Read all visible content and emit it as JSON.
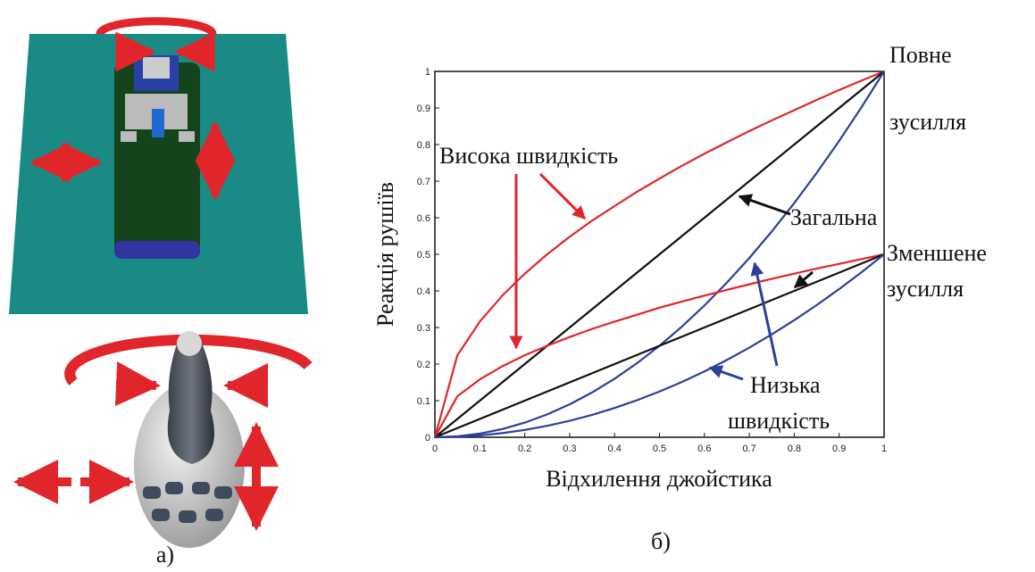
{
  "chart_data": {
    "type": "line",
    "xlabel": "Відхилення джойстика",
    "ylabel": "Реакція рушіїв",
    "x": [
      0,
      0.05,
      0.1,
      0.15,
      0.2,
      0.25,
      0.3,
      0.35,
      0.4,
      0.45,
      0.5,
      0.55,
      0.6,
      0.65,
      0.7,
      0.75,
      0.8,
      0.85,
      0.9,
      0.95,
      1
    ],
    "series": [
      {
        "color": "#e0262a",
        "values": [
          0,
          0.224,
          0.316,
          0.387,
          0.447,
          0.5,
          0.548,
          0.592,
          0.632,
          0.671,
          0.707,
          0.742,
          0.775,
          0.806,
          0.837,
          0.866,
          0.894,
          0.922,
          0.949,
          0.975,
          1
        ]
      },
      {
        "color": "#111111",
        "values": [
          0,
          0.05,
          0.1,
          0.15,
          0.2,
          0.25,
          0.3,
          0.35,
          0.4,
          0.45,
          0.5,
          0.55,
          0.6,
          0.65,
          0.7,
          0.75,
          0.8,
          0.85,
          0.9,
          0.95,
          1
        ]
      },
      {
        "color": "#2d3f9a",
        "values": [
          0,
          0.0025,
          0.01,
          0.0225,
          0.04,
          0.0625,
          0.09,
          0.1225,
          0.16,
          0.2025,
          0.25,
          0.3025,
          0.36,
          0.4225,
          0.49,
          0.5625,
          0.64,
          0.7225,
          0.81,
          0.9025,
          1
        ]
      },
      {
        "color": "#e0262a",
        "values": [
          0,
          0.112,
          0.158,
          0.194,
          0.224,
          0.25,
          0.274,
          0.296,
          0.316,
          0.335,
          0.354,
          0.371,
          0.387,
          0.403,
          0.418,
          0.433,
          0.447,
          0.461,
          0.474,
          0.487,
          0.5
        ]
      },
      {
        "color": "#111111",
        "values": [
          0,
          0.025,
          0.05,
          0.075,
          0.1,
          0.125,
          0.15,
          0.175,
          0.2,
          0.225,
          0.25,
          0.275,
          0.3,
          0.325,
          0.35,
          0.375,
          0.4,
          0.425,
          0.45,
          0.475,
          0.5
        ]
      },
      {
        "color": "#2d3f9a",
        "values": [
          0,
          0.00125,
          0.005,
          0.01125,
          0.02,
          0.03125,
          0.045,
          0.06125,
          0.08,
          0.10125,
          0.125,
          0.15125,
          0.18,
          0.21125,
          0.245,
          0.28125,
          0.32,
          0.36125,
          0.405,
          0.45125,
          0.5
        ]
      }
    ],
    "xlim": [
      0,
      1
    ],
    "ylim": [
      0,
      1
    ],
    "xticks": [
      0,
      0.1,
      0.2,
      0.3,
      0.4,
      0.5,
      0.6,
      0.7,
      0.8,
      0.9,
      1
    ],
    "yticks": [
      0,
      0.1,
      0.2,
      0.3,
      0.4,
      0.5,
      0.6,
      0.7,
      0.8,
      0.9,
      1
    ],
    "annotations": [
      "Повне",
      "зусилля",
      "Висока швидкість",
      "Загальна",
      "Зменшене",
      "зусилля",
      "Низька",
      "швидкість"
    ]
  },
  "panel_labels": [
    "а)",
    "б)"
  ]
}
